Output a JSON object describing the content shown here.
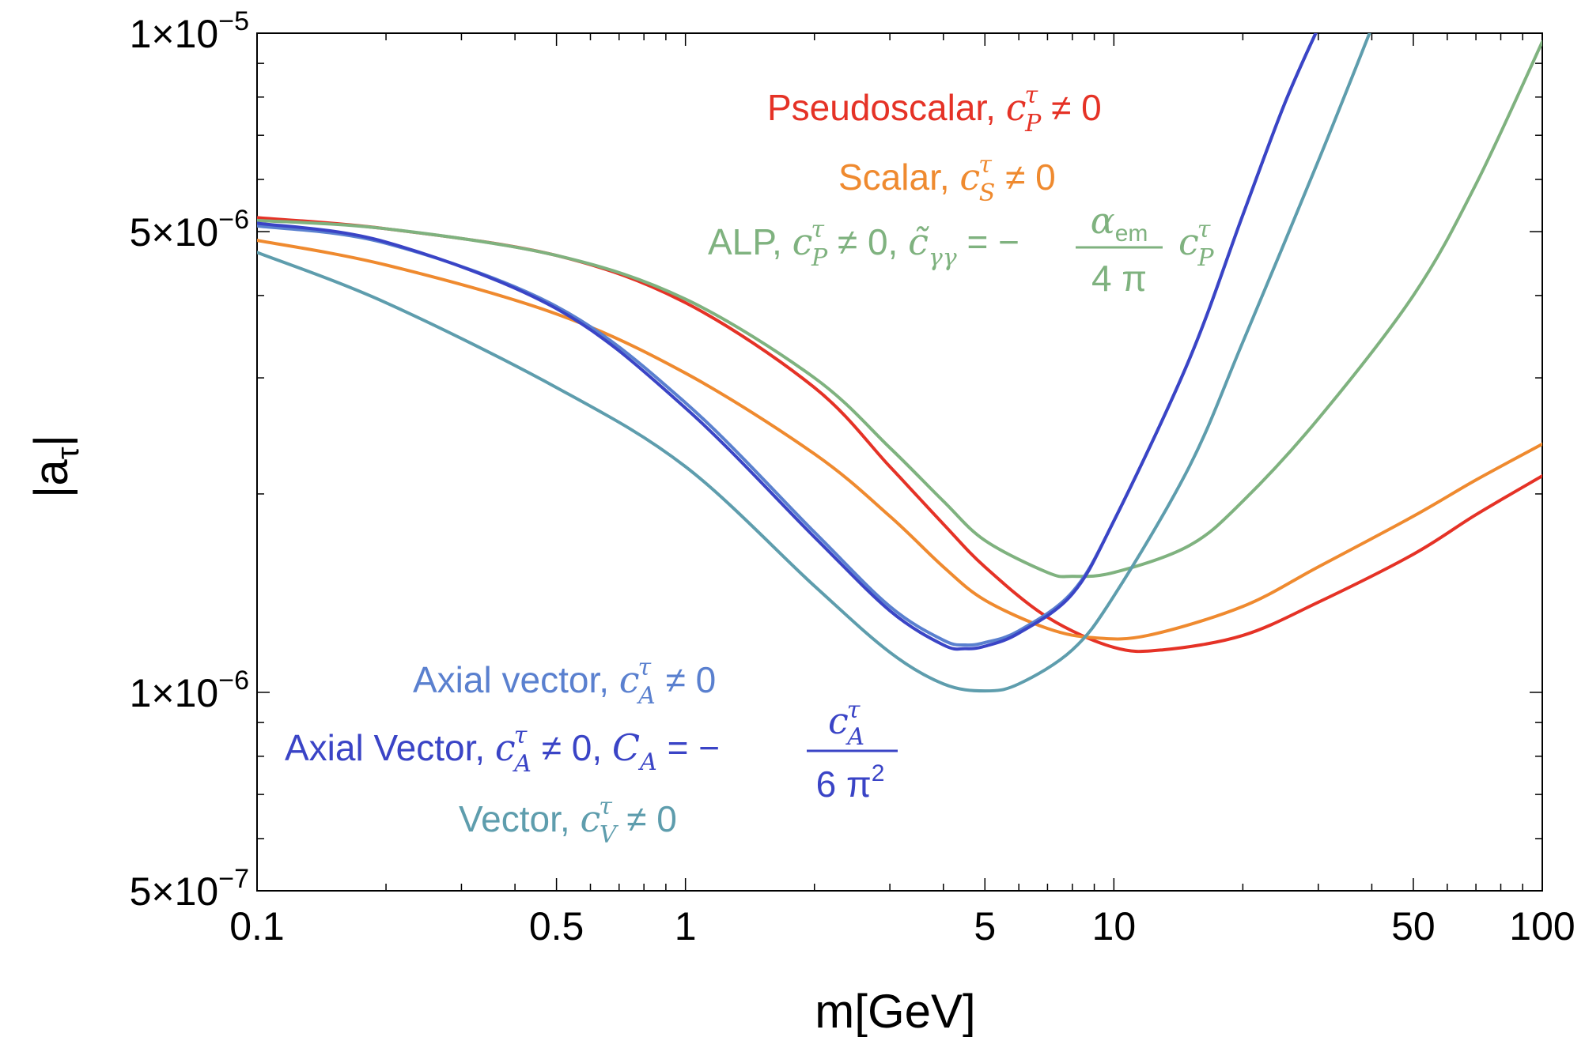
{
  "chart_data": {
    "type": "line",
    "xlabel": "m[GeV]",
    "ylabel": "|a",
    "ylabel_sub": "τ",
    "ylabel_close": "|",
    "xscale": "log",
    "yscale": "log",
    "xlim": [
      0.1,
      100
    ],
    "ylim": [
      5e-07,
      1e-05
    ],
    "grid": false,
    "x_ticks": [
      {
        "value": 0.1,
        "label": "0.1"
      },
      {
        "value": 0.5,
        "label": "0.5"
      },
      {
        "value": 1,
        "label": "1"
      },
      {
        "value": 5,
        "label": "5"
      },
      {
        "value": 10,
        "label": "10"
      },
      {
        "value": 50,
        "label": "50"
      },
      {
        "value": 100,
        "label": "100"
      }
    ],
    "y_ticks": [
      {
        "value": 5e-07,
        "mant": "5",
        "exp": "−7"
      },
      {
        "value": 1e-06,
        "mant": "1",
        "exp": "−6"
      },
      {
        "value": 5e-06,
        "mant": "5",
        "exp": "−6"
      },
      {
        "value": 1e-05,
        "mant": "1",
        "exp": "−5"
      }
    ],
    "series": [
      {
        "key": "pseudoscalar",
        "color": "#e53226",
        "points": [
          [
            0.1,
            5.25e-06
          ],
          [
            0.2,
            5.05e-06
          ],
          [
            0.5,
            4.6e-06
          ],
          [
            1,
            3.9e-06
          ],
          [
            2,
            2.9e-06
          ],
          [
            3,
            2.2e-06
          ],
          [
            4,
            1.8e-06
          ],
          [
            5,
            1.55e-06
          ],
          [
            7,
            1.3e-06
          ],
          [
            10,
            1.17e-06
          ],
          [
            13,
            1.16e-06
          ],
          [
            20,
            1.22e-06
          ],
          [
            30,
            1.37e-06
          ],
          [
            50,
            1.62e-06
          ],
          [
            70,
            1.86e-06
          ],
          [
            100,
            2.13e-06
          ]
        ]
      },
      {
        "key": "scalar",
        "color": "#ef8a2f",
        "points": [
          [
            0.1,
            4.85e-06
          ],
          [
            0.2,
            4.45e-06
          ],
          [
            0.5,
            3.75e-06
          ],
          [
            1,
            3.05e-06
          ],
          [
            2,
            2.3e-06
          ],
          [
            3,
            1.85e-06
          ],
          [
            4,
            1.55e-06
          ],
          [
            5,
            1.38e-06
          ],
          [
            7,
            1.25e-06
          ],
          [
            9,
            1.21e-06
          ],
          [
            12,
            1.22e-06
          ],
          [
            20,
            1.35e-06
          ],
          [
            30,
            1.55e-06
          ],
          [
            50,
            1.85e-06
          ],
          [
            70,
            2.1e-06
          ],
          [
            100,
            2.38e-06
          ]
        ]
      },
      {
        "key": "alp",
        "color": "#7fb27f",
        "points": [
          [
            0.1,
            5.2e-06
          ],
          [
            0.2,
            5.05e-06
          ],
          [
            0.5,
            4.6e-06
          ],
          [
            1,
            3.95e-06
          ],
          [
            2,
            3e-06
          ],
          [
            3,
            2.35e-06
          ],
          [
            4,
            1.95e-06
          ],
          [
            5,
            1.7e-06
          ],
          [
            7,
            1.52e-06
          ],
          [
            8,
            1.5e-06
          ],
          [
            10,
            1.52e-06
          ],
          [
            15,
            1.67e-06
          ],
          [
            20,
            1.95e-06
          ],
          [
            30,
            2.6e-06
          ],
          [
            50,
            4e-06
          ],
          [
            70,
            5.9e-06
          ],
          [
            100,
            9.7e-06
          ]
        ]
      },
      {
        "key": "axial_vector",
        "color": "#5a80cf",
        "points": [
          [
            0.1,
            5.1e-06
          ],
          [
            0.2,
            4.8e-06
          ],
          [
            0.5,
            3.85e-06
          ],
          [
            1,
            2.75e-06
          ],
          [
            2,
            1.75e-06
          ],
          [
            3,
            1.35e-06
          ],
          [
            4,
            1.2e-06
          ],
          [
            4.5,
            1.18e-06
          ],
          [
            5,
            1.19e-06
          ],
          [
            6,
            1.24e-06
          ],
          [
            8,
            1.42e-06
          ],
          [
            10,
            1.82e-06
          ],
          [
            15,
            3.2e-06
          ],
          [
            20,
            5.3e-06
          ],
          [
            25,
            7.8e-06
          ],
          [
            30,
            1.02e-05
          ]
        ]
      },
      {
        "key": "axial_vector_ca",
        "color": "#3a44c6",
        "points": [
          [
            0.1,
            5.15e-06
          ],
          [
            0.2,
            4.82e-06
          ],
          [
            0.5,
            3.82e-06
          ],
          [
            1,
            2.7e-06
          ],
          [
            2,
            1.72e-06
          ],
          [
            3,
            1.33e-06
          ],
          [
            4,
            1.18e-06
          ],
          [
            4.5,
            1.165e-06
          ],
          [
            5,
            1.175e-06
          ],
          [
            6,
            1.23e-06
          ],
          [
            8,
            1.41e-06
          ],
          [
            10,
            1.82e-06
          ],
          [
            15,
            3.2e-06
          ],
          [
            20,
            5.3e-06
          ],
          [
            25,
            7.8e-06
          ],
          [
            30,
            1.02e-05
          ]
        ]
      },
      {
        "key": "vector",
        "color": "#5e9dad",
        "points": [
          [
            0.1,
            4.65e-06
          ],
          [
            0.2,
            3.9e-06
          ],
          [
            0.5,
            2.9e-06
          ],
          [
            1,
            2.2e-06
          ],
          [
            2,
            1.45e-06
          ],
          [
            3,
            1.15e-06
          ],
          [
            4,
            1.03e-06
          ],
          [
            5,
            1.005e-06
          ],
          [
            6,
            1.03e-06
          ],
          [
            8,
            1.16e-06
          ],
          [
            10,
            1.4e-06
          ],
          [
            15,
            2.2e-06
          ],
          [
            20,
            3.4e-06
          ],
          [
            30,
            6.4e-06
          ],
          [
            40,
            1.02e-05
          ]
        ]
      }
    ],
    "annotations": {
      "pseudoscalar": {
        "text": "Pseudoscalar, ",
        "c": "c",
        "c_sup": "τ",
        "c_sub": "P",
        "rel": " ≠ 0"
      },
      "scalar": {
        "text": "Scalar, ",
        "c": "c",
        "c_sup": "τ",
        "c_sub": "S",
        "rel": " ≠ 0"
      },
      "alp": {
        "text": "ALP, ",
        "c": "c",
        "c_sup": "τ",
        "c_sub": "P",
        "rel": " ≠ 0, ",
        "c2": "c̃",
        "c2_sub": "γγ",
        "eq": " = −",
        "frac_num": "α",
        "frac_num_sub": "em",
        "frac_den": "4 π",
        "c3": "c",
        "c3_sup": "τ",
        "c3_sub": "P"
      },
      "axial_vector": {
        "text": "Axial vector, ",
        "c": "c",
        "c_sup": "τ",
        "c_sub": "A",
        "rel": " ≠ 0"
      },
      "axial_vector_ca": {
        "text": "Axial Vector, ",
        "c": "c",
        "c_sup": "τ",
        "c_sub": "A",
        "rel": " ≠ 0, ",
        "C": "C",
        "C_sub": "A",
        "eq": " = −",
        "frac_num": "c",
        "frac_num_sup": "τ",
        "frac_num_sub": "A",
        "frac_den": "6 π",
        "frac_den_sup": "2"
      },
      "vector": {
        "text": "Vector, ",
        "c": "c",
        "c_sup": "τ",
        "c_sub": "V",
        "rel": " ≠ 0"
      }
    }
  }
}
